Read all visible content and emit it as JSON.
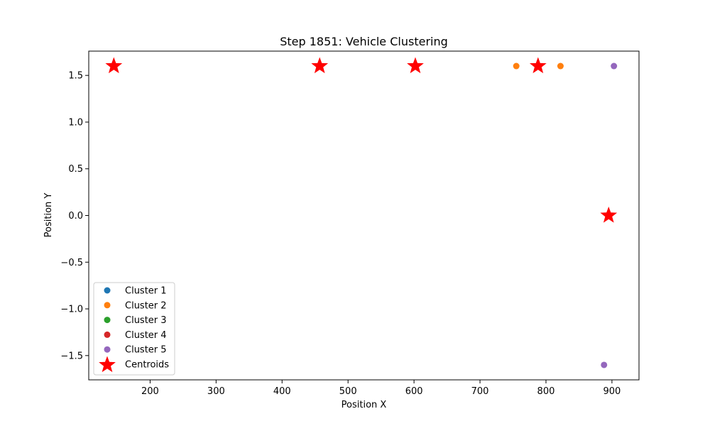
{
  "chart_data": {
    "type": "scatter",
    "title": "Step 1851: Vehicle Clustering",
    "xlabel": "Position X",
    "ylabel": "Position Y",
    "xlim": [
      107,
      941
    ],
    "ylim": [
      -1.76,
      1.76
    ],
    "xticks": [
      200,
      300,
      400,
      500,
      600,
      700,
      800,
      900
    ],
    "xtick_labels": [
      "200",
      "300",
      "400",
      "500",
      "600",
      "700",
      "800",
      "900"
    ],
    "yticks": [
      -1.5,
      -1.0,
      -0.5,
      0.0,
      0.5,
      1.0,
      1.5
    ],
    "ytick_labels": [
      "−1.5",
      "−1.0",
      "−0.5",
      "0.0",
      "0.5",
      "1.0",
      "1.5"
    ],
    "grid": false,
    "legend_position": "lower-left",
    "series": [
      {
        "name": "Cluster 1",
        "color": "#1f77b4",
        "marker": "circle",
        "points": []
      },
      {
        "name": "Cluster 2",
        "color": "#ff7f0e",
        "marker": "circle",
        "points": [
          [
            755,
            1.6
          ],
          [
            822,
            1.6
          ]
        ]
      },
      {
        "name": "Cluster 3",
        "color": "#2ca02c",
        "marker": "circle",
        "points": []
      },
      {
        "name": "Cluster 4",
        "color": "#d62728",
        "marker": "circle",
        "points": []
      },
      {
        "name": "Cluster 5",
        "color": "#9467bd",
        "marker": "circle",
        "points": [
          [
            903,
            1.6
          ],
          [
            888,
            -1.6
          ]
        ]
      },
      {
        "name": "Centroids",
        "color": "#ff0000",
        "marker": "star",
        "points": [
          [
            145,
            1.6
          ],
          [
            457,
            1.6
          ],
          [
            602,
            1.6
          ],
          [
            788,
            1.6
          ],
          [
            895,
            0.0
          ]
        ]
      }
    ]
  }
}
